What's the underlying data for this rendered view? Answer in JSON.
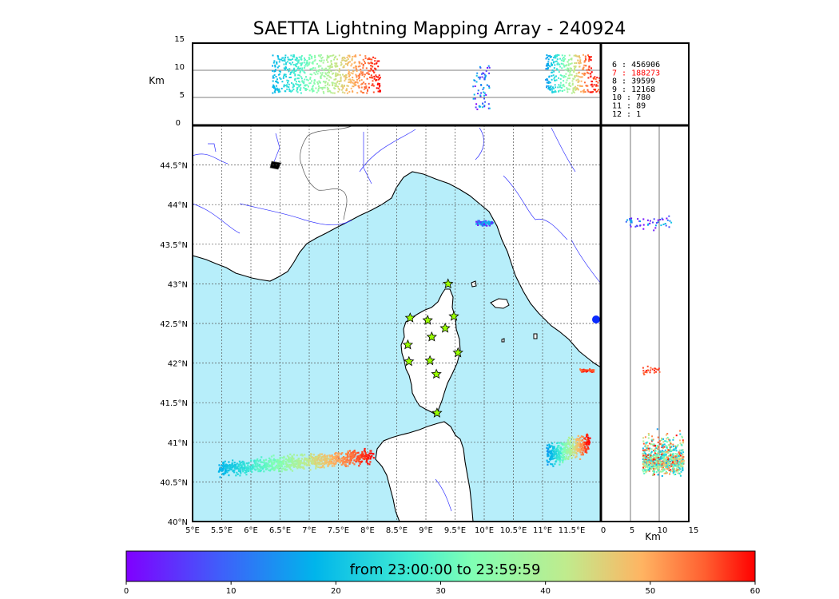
{
  "title": "SAETTA Lightning Mapping Array - 240924",
  "top_panel": {
    "ylabel": "Km",
    "yticks": [
      "15",
      "10",
      "5",
      "0"
    ]
  },
  "side_panel": {
    "xlabel": "Km",
    "xticks": [
      "0",
      "5",
      "10",
      "15"
    ]
  },
  "map": {
    "lon_ticks": [
      "5°E",
      "5.5°E",
      "6°E",
      "6.5°E",
      "7°E",
      "7.5°E",
      "8°E",
      "8.5°E",
      "9°E",
      "9.5°E",
      "10°E",
      "10.5°E",
      "11°E",
      "11.5°E"
    ],
    "lat_ticks": [
      "44.5°N",
      "44°N",
      "43.5°N",
      "43°N",
      "42.5°N",
      "42°N",
      "41.5°N",
      "41°N",
      "40.5°N",
      "40°N"
    ],
    "lon_range": [
      5.0,
      12.0
    ],
    "lat_range": [
      40.0,
      45.0
    ],
    "sea_color": "#b7eefa",
    "land_color": "#ffffff",
    "coast_color": "#000000",
    "river_color": "#3333ff",
    "station_color": "#99ff00",
    "stations_lonlat": [
      [
        9.38,
        43.0
      ],
      [
        8.73,
        42.57
      ],
      [
        9.03,
        42.54
      ],
      [
        9.48,
        42.59
      ],
      [
        9.33,
        42.44
      ],
      [
        9.1,
        42.33
      ],
      [
        8.69,
        42.23
      ],
      [
        9.55,
        42.13
      ],
      [
        8.71,
        42.02
      ],
      [
        9.07,
        42.03
      ],
      [
        9.18,
        41.86
      ],
      [
        9.19,
        41.37
      ]
    ]
  },
  "legend": {
    "entries": [
      {
        "label": "6  :   456906",
        "color": "#000000"
      },
      {
        "label": "7  :   188273",
        "color": "#ff0000"
      },
      {
        "label": "8  :    39599",
        "color": "#000000"
      },
      {
        "label": "9  :    12168",
        "color": "#000000"
      },
      {
        "label": "10 :      780",
        "color": "#000000"
      },
      {
        "label": "11 :       89",
        "color": "#000000"
      },
      {
        "label": "12 :        1",
        "color": "#000000"
      }
    ]
  },
  "colorbar": {
    "label": "from 23:00:00 to 23:59:59",
    "ticks": [
      "0",
      "10",
      "20",
      "30",
      "40",
      "50",
      "60"
    ]
  }
}
